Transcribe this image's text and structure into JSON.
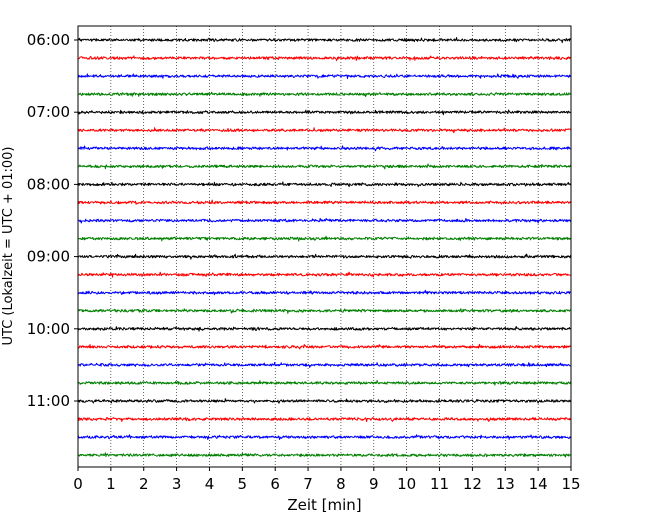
{
  "chart_data": {
    "type": "line",
    "title": "",
    "xlabel": "Zeit  [min]",
    "ylabel": "UTC (Lokalzeit = UTC + 01:00)",
    "xlim": [
      0,
      15
    ],
    "x_ticks": [
      "0",
      "1",
      "2",
      "3",
      "4",
      "5",
      "6",
      "7",
      "8",
      "9",
      "10",
      "11",
      "12",
      "13",
      "14",
      "15"
    ],
    "y_tick_labels": [
      "06:00",
      "07:00",
      "08:00",
      "09:00",
      "10:00",
      "11:00"
    ],
    "y_tick_rows": [
      0,
      4,
      8,
      12,
      16,
      20
    ],
    "grid": "vertical-dotted",
    "trace_count": 24,
    "trace_interval_min": 15,
    "start_time": "06:00",
    "trace_colors": [
      "#000000",
      "#ff0000",
      "#0000ff",
      "#008000"
    ]
  }
}
